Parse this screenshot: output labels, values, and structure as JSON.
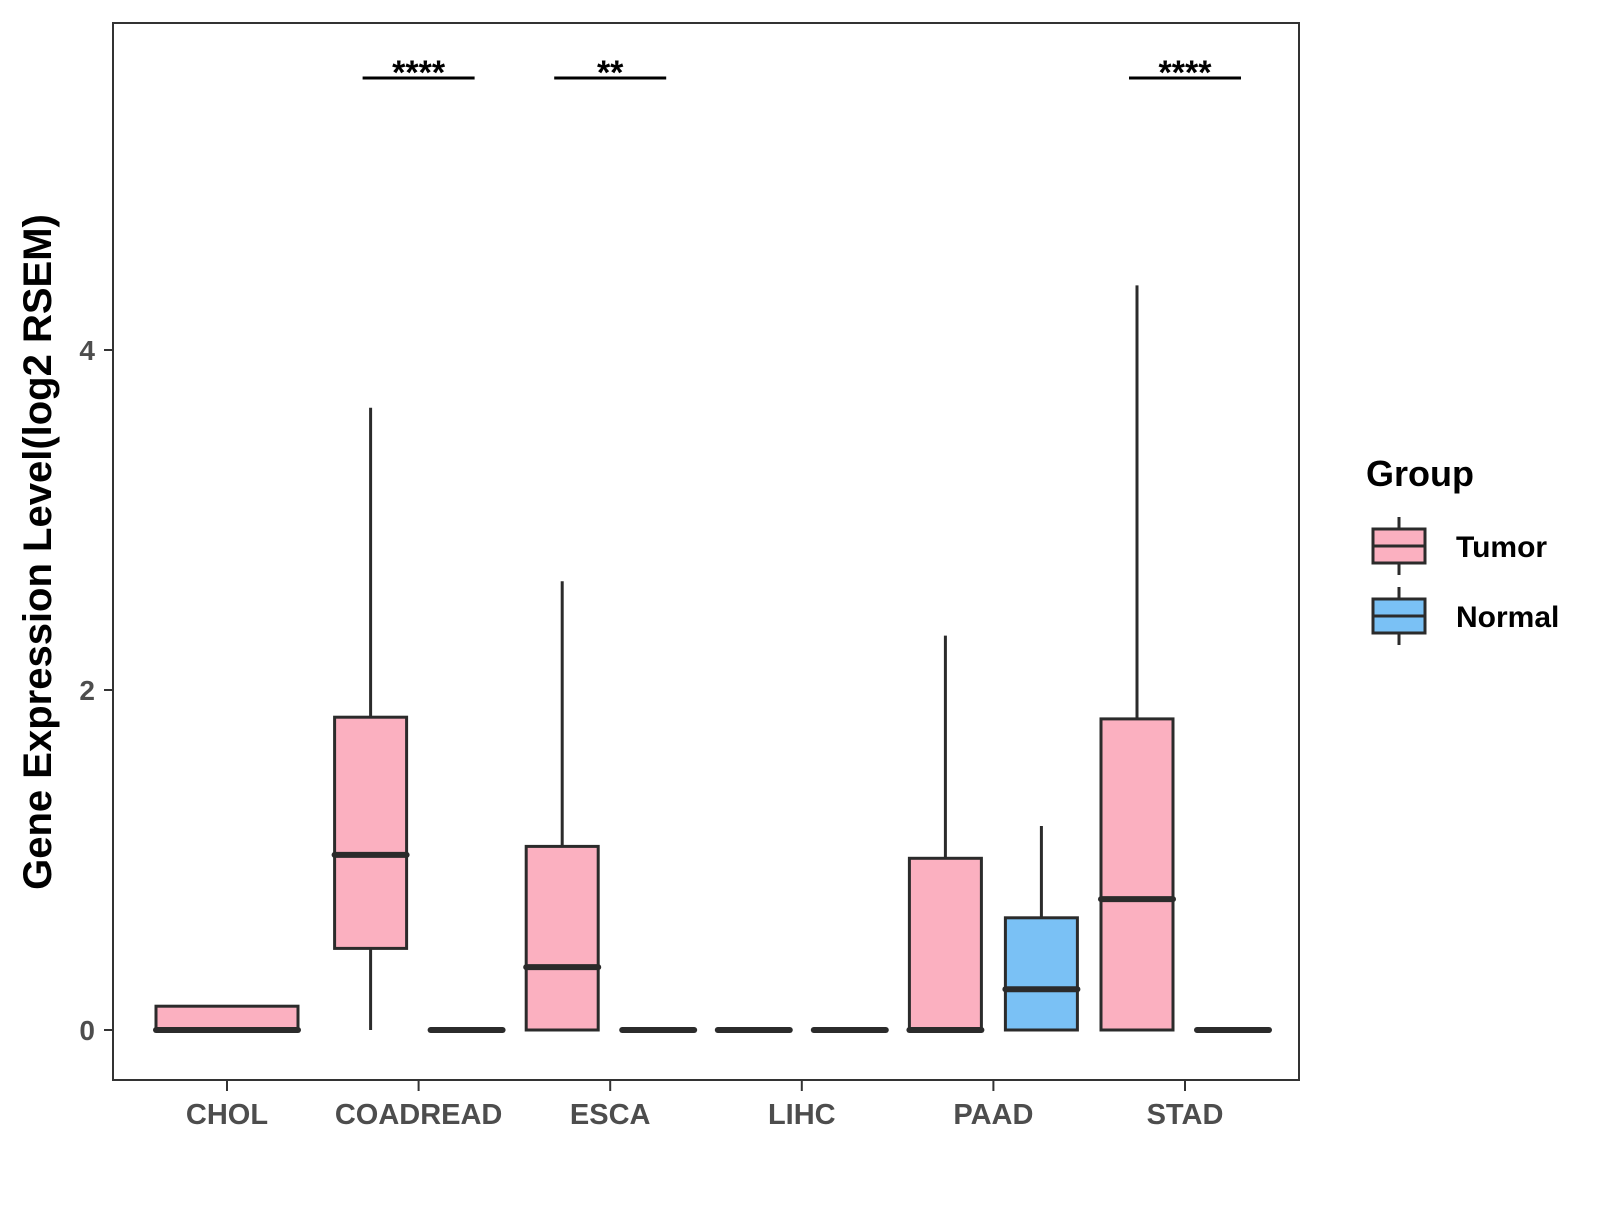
{
  "chart_data": {
    "type": "boxplot",
    "title": "",
    "xlabel": "",
    "ylabel": "Gene Expression Level(log2 RSEM)",
    "ylim": [
      -0.28,
      5.95
    ],
    "y_ticks": [
      0,
      2,
      4
    ],
    "y_tick_labels": [
      "0",
      "2",
      "4"
    ],
    "categories": [
      "CHOL",
      "COADREAD",
      "ESCA",
      "LIHC",
      "PAAD",
      "STAD"
    ],
    "legend": {
      "title": "Group",
      "placement": "right",
      "entries": [
        {
          "name": "Tumor",
          "color": "#FBB0C0"
        },
        {
          "name": "Normal",
          "color": "#7AC1F5"
        }
      ]
    },
    "series": [
      {
        "name": "Tumor",
        "color": "#FBB0C0",
        "boxes": [
          {
            "category": "CHOL",
            "min": 0,
            "q1": 0,
            "median": 0,
            "q3": 0.14,
            "max": 0.14,
            "wide": true
          },
          {
            "category": "COADREAD",
            "min": 0,
            "q1": 0.48,
            "median": 1.03,
            "q3": 1.84,
            "max": 3.66
          },
          {
            "category": "ESCA",
            "min": 0,
            "q1": 0,
            "median": 0.37,
            "q3": 1.08,
            "max": 2.64
          },
          {
            "category": "LIHC",
            "min": 0,
            "q1": 0,
            "median": 0,
            "q3": 0,
            "max": 0
          },
          {
            "category": "PAAD",
            "min": 0,
            "q1": 0,
            "median": 0,
            "q3": 1.01,
            "max": 2.32
          },
          {
            "category": "STAD",
            "min": 0,
            "q1": 0,
            "median": 0.77,
            "q3": 1.83,
            "max": 4.38
          }
        ]
      },
      {
        "name": "Normal",
        "color": "#7AC1F5",
        "boxes": [
          {
            "category": "COADREAD",
            "min": 0,
            "q1": 0,
            "median": 0,
            "q3": 0,
            "max": 0
          },
          {
            "category": "ESCA",
            "min": 0,
            "q1": 0,
            "median": 0,
            "q3": 0,
            "max": 0
          },
          {
            "category": "LIHC",
            "min": 0,
            "q1": 0,
            "median": 0,
            "q3": 0,
            "max": 0
          },
          {
            "category": "PAAD",
            "min": 0,
            "q1": 0,
            "median": 0.24,
            "q3": 0.66,
            "max": 1.2
          },
          {
            "category": "STAD",
            "min": 0,
            "q1": 0,
            "median": 0,
            "q3": 0,
            "max": 0
          }
        ]
      }
    ],
    "annotations": [
      {
        "category": "COADREAD",
        "label": "****",
        "y": 5.6
      },
      {
        "category": "ESCA",
        "label": "**",
        "y": 5.6
      },
      {
        "category": "STAD",
        "label": "****",
        "y": 5.6
      }
    ]
  }
}
